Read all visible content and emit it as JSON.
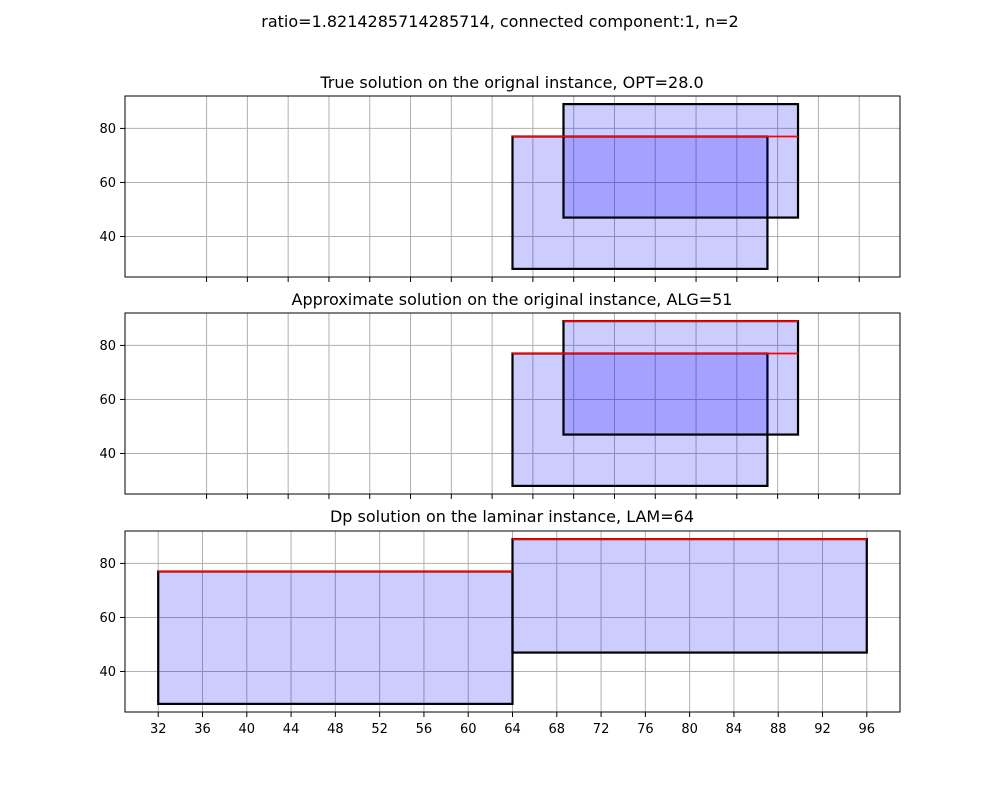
{
  "figure": {
    "suptitle": "ratio=1.8214285714285714, connected component:1, n=2"
  },
  "colors": {
    "grid": "#b0b0b0",
    "axes": "#000000",
    "rect_fill": "#0000ff",
    "rect_stroke": "#000000",
    "top_line": "#ff0000"
  },
  "chart_data": [
    {
      "type": "rectangles",
      "title": "True solution on the orignal instance, OPT=28.0",
      "xlim": [
        24,
        100
      ],
      "ylim": [
        25,
        92
      ],
      "xticks": [
        32,
        36,
        40,
        44,
        48,
        52,
        56,
        60,
        64,
        68,
        72,
        76,
        80,
        84,
        88,
        92,
        96
      ],
      "yticks": [
        40,
        60,
        80
      ],
      "show_xtick_labels": false,
      "grid": true,
      "rectangles": [
        {
          "x0": 62,
          "x1": 87,
          "y0": 28,
          "y1": 77,
          "fill_opacity": 0.2
        },
        {
          "x0": 67,
          "x1": 90,
          "y0": 47,
          "y1": 89,
          "fill_opacity": 0.2
        }
      ],
      "red_lines": [
        {
          "x0": 62,
          "x1": 90,
          "y": 77
        }
      ]
    },
    {
      "type": "rectangles",
      "title": "Approximate solution on the original instance, ALG=51",
      "xlim": [
        24,
        100
      ],
      "ylim": [
        25,
        92
      ],
      "xticks": [
        32,
        36,
        40,
        44,
        48,
        52,
        56,
        60,
        64,
        68,
        72,
        76,
        80,
        84,
        88,
        92,
        96
      ],
      "yticks": [
        40,
        60,
        80
      ],
      "show_xtick_labels": false,
      "grid": true,
      "rectangles": [
        {
          "x0": 62,
          "x1": 87,
          "y0": 28,
          "y1": 77,
          "fill_opacity": 0.2
        },
        {
          "x0": 67,
          "x1": 90,
          "y0": 47,
          "y1": 89,
          "fill_opacity": 0.2
        }
      ],
      "red_lines": [
        {
          "x0": 62,
          "x1": 90,
          "y": 77
        },
        {
          "x0": 67,
          "x1": 90,
          "y": 89
        }
      ]
    },
    {
      "type": "rectangles",
      "title": "Dp solution on the laminar instance, LAM=64",
      "xlim": [
        29,
        99
      ],
      "ylim": [
        25,
        92
      ],
      "xticks": [
        32,
        36,
        40,
        44,
        48,
        52,
        56,
        60,
        64,
        68,
        72,
        76,
        80,
        84,
        88,
        92,
        96
      ],
      "yticks": [
        40,
        60,
        80
      ],
      "show_xtick_labels": true,
      "grid": true,
      "rectangles": [
        {
          "x0": 32,
          "x1": 64,
          "y0": 28,
          "y1": 77,
          "fill_opacity": 0.2
        },
        {
          "x0": 64,
          "x1": 96,
          "y0": 47,
          "y1": 89,
          "fill_opacity": 0.2
        }
      ],
      "red_lines": [
        {
          "x0": 32,
          "x1": 64,
          "y": 77
        },
        {
          "x0": 64,
          "x1": 96,
          "y": 89
        }
      ]
    }
  ]
}
